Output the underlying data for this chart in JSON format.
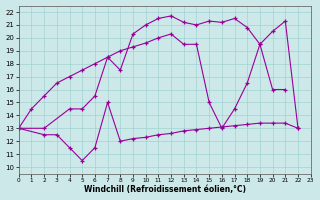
{
  "xlabel": "Windchill (Refroidissement éolien,°C)",
  "xlim": [
    0,
    23
  ],
  "ylim": [
    9.5,
    22.5
  ],
  "yticks": [
    10,
    11,
    12,
    13,
    14,
    15,
    16,
    17,
    18,
    19,
    20,
    21,
    22
  ],
  "xticks": [
    0,
    1,
    2,
    3,
    4,
    5,
    6,
    7,
    8,
    9,
    10,
    11,
    12,
    13,
    14,
    15,
    16,
    17,
    18,
    19,
    20,
    21,
    22,
    23
  ],
  "bg_color": "#cce8e8",
  "line_color": "#990099",
  "line1_x": [
    0,
    2,
    4,
    5,
    6,
    7,
    8,
    9,
    10,
    11,
    12,
    13,
    14,
    15,
    16,
    17,
    18,
    19,
    20,
    21
  ],
  "line1_y": [
    13.0,
    13.0,
    14.5,
    14.5,
    15.5,
    18.5,
    17.5,
    20.3,
    21.0,
    21.5,
    21.7,
    21.2,
    21.0,
    21.3,
    21.2,
    21.5,
    20.8,
    19.5,
    16.0,
    16.0
  ],
  "line2_x": [
    0,
    2,
    3,
    4,
    5,
    6,
    7,
    8,
    9,
    10,
    11,
    12,
    13,
    14,
    15,
    16,
    17,
    18,
    19,
    20,
    21,
    22
  ],
  "line2_y": [
    13.0,
    12.5,
    12.5,
    11.5,
    10.5,
    11.5,
    15.0,
    12.0,
    12.2,
    12.3,
    12.5,
    12.6,
    12.8,
    12.9,
    13.0,
    13.1,
    13.2,
    13.3,
    13.4,
    13.4,
    13.4,
    13.0
  ],
  "line3_x": [
    0,
    1,
    2,
    3,
    4,
    5,
    6,
    7,
    8,
    9,
    10,
    11,
    12,
    13,
    14,
    15,
    16,
    17,
    18,
    19,
    20,
    21,
    22
  ],
  "line3_y": [
    13.0,
    14.5,
    15.5,
    16.5,
    17.0,
    17.5,
    18.0,
    18.5,
    19.0,
    19.3,
    19.6,
    20.0,
    20.3,
    19.5,
    19.5,
    15.0,
    13.0,
    14.5,
    16.5,
    19.5,
    20.5,
    21.3,
    13.0
  ]
}
